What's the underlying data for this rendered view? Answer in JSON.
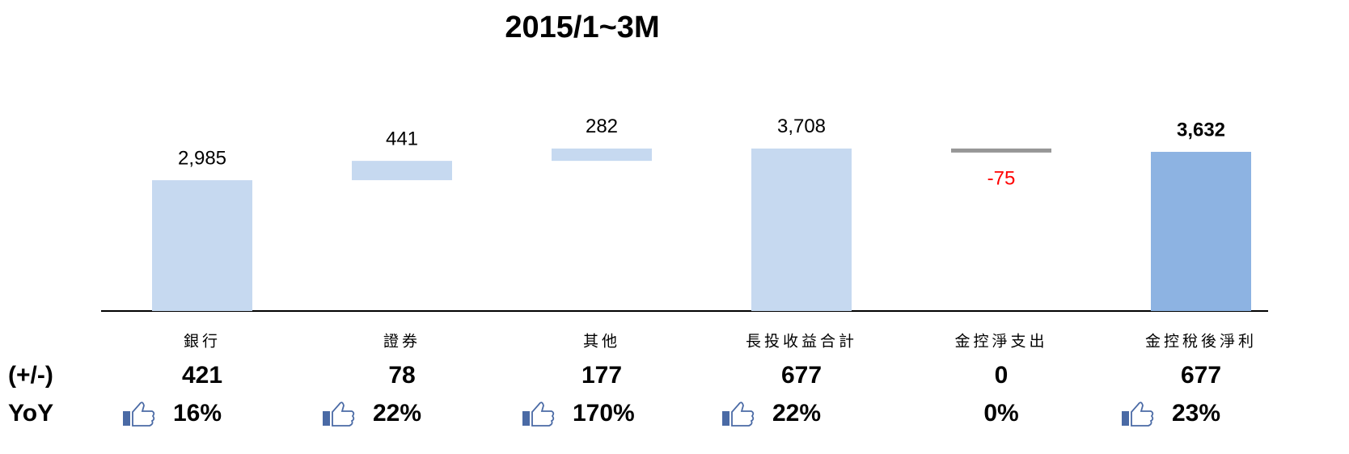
{
  "chart_data": {
    "type": "waterfall",
    "title": "2015/1~3M",
    "categories": [
      "銀行",
      "證券",
      "其他",
      "長投收益合計",
      "金控淨支出",
      "金控稅後淨利"
    ],
    "values": [
      2985,
      441,
      282,
      3708,
      -75,
      3632
    ],
    "value_labels": [
      "2,985",
      "441",
      "282",
      "3,708",
      "-75",
      "3,632"
    ],
    "totals": [
      false,
      false,
      false,
      true,
      false,
      true
    ],
    "color": "#c6d9f0",
    "final_color": "#8db3e2",
    "negative_color": "#969696",
    "negative_label_color": "#ff0000",
    "ylim": [
      0,
      4000
    ],
    "rows": [
      {
        "label": "(+/-)",
        "values": [
          421,
          78,
          177,
          677,
          0,
          677
        ]
      },
      {
        "label": "YoY",
        "values": [
          16,
          22,
          170,
          22,
          0,
          23
        ],
        "value_labels": [
          "16%",
          "22%",
          "170%",
          "22%",
          "0%",
          "23%"
        ]
      }
    ]
  }
}
